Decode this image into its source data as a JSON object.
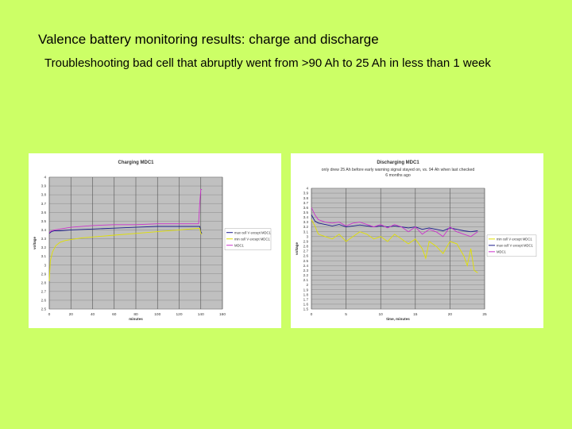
{
  "slide": {
    "title": "Valence battery monitoring results: charge and discharge",
    "subtitle": "Troubleshooting bad cell that abruptly went from >90 Ah to 25 Ah in less than 1 week"
  },
  "colors": {
    "background": "#ccff66",
    "plot_area": "#c0c0c0",
    "max_series": "#1a1a8c",
    "min_series": "#e0e000",
    "mdc1_series": "#cc33cc"
  },
  "chart_data": [
    {
      "type": "line",
      "title": "Charging MDC1",
      "xlabel": "minutes",
      "ylabel": "voltage",
      "xlim": [
        0,
        160
      ],
      "ylim": [
        2.5,
        4.0
      ],
      "x_ticks": [
        "0",
        "20",
        "40",
        "60",
        "80",
        "100",
        "120",
        "140",
        "160"
      ],
      "y_ticks": [
        "4",
        "3.9",
        "3.8",
        "3.7",
        "3.6",
        "3.5",
        "3.4",
        "3.3",
        "3.2",
        "3.1",
        "3",
        "2.9",
        "2.8",
        "2.7",
        "2.6",
        "2.5"
      ],
      "grid": true,
      "legend_position": "right",
      "series": [
        {
          "name": "max cell V except MDC1",
          "x": [
            0,
            2,
            5,
            10,
            20,
            40,
            60,
            80,
            100,
            120,
            139,
            140,
            141
          ],
          "y": [
            3.36,
            3.38,
            3.39,
            3.39,
            3.4,
            3.41,
            3.42,
            3.43,
            3.44,
            3.44,
            3.44,
            3.38,
            3.36
          ]
        },
        {
          "name": "min cell V except MDC1",
          "x": [
            0,
            1,
            3,
            6,
            10,
            15,
            20,
            30,
            40,
            60,
            80,
            100,
            120,
            139,
            140,
            141
          ],
          "y": [
            2.82,
            3.05,
            3.15,
            3.22,
            3.26,
            3.28,
            3.29,
            3.31,
            3.32,
            3.34,
            3.36,
            3.38,
            3.4,
            3.42,
            3.36,
            3.35
          ]
        },
        {
          "name": "MDC1",
          "x": [
            0,
            2,
            5,
            10,
            20,
            40,
            60,
            80,
            100,
            110,
            120,
            138,
            139,
            140,
            141
          ],
          "y": [
            3.37,
            3.39,
            3.4,
            3.41,
            3.43,
            3.45,
            3.46,
            3.46,
            3.47,
            3.47,
            3.47,
            3.47,
            3.7,
            3.86,
            3.86
          ]
        }
      ]
    },
    {
      "type": "line",
      "title": "Discharging MDC1",
      "subtitle": "only drew 25 Ah before early warning signal stayed on, vs. 94 Ah when last checked 6 months ago",
      "xlabel": "time, minutes",
      "ylabel": "voltage",
      "xlim": [
        0,
        25
      ],
      "ylim": [
        1.5,
        4.0
      ],
      "x_ticks": [
        "0",
        "5",
        "10",
        "15",
        "20",
        "25"
      ],
      "y_ticks": [
        "4",
        "3.9",
        "3.8",
        "3.7",
        "3.6",
        "3.5",
        "3.4",
        "3.3",
        "3.2",
        "3.1",
        "3",
        "2.9",
        "2.8",
        "2.7",
        "2.6",
        "2.5",
        "2.4",
        "2.3",
        "2.2",
        "2.1",
        "2",
        "1.9",
        "1.8",
        "1.7",
        "1.6",
        "1.5"
      ],
      "grid": true,
      "legend_position": "right",
      "series": [
        {
          "name": "min cell V except MDC1",
          "x": [
            0,
            0.5,
            1,
            2,
            3,
            4,
            5,
            6,
            7,
            8,
            9,
            10,
            11,
            12,
            13,
            14,
            15,
            16,
            16.5,
            17,
            18,
            19,
            20,
            21,
            22,
            22.5,
            23,
            23.5,
            24
          ],
          "y": [
            3.35,
            3.22,
            3.05,
            3.0,
            2.95,
            3.05,
            2.9,
            3.0,
            3.1,
            3.05,
            2.95,
            3.0,
            2.9,
            3.05,
            2.95,
            2.85,
            2.95,
            2.75,
            2.55,
            2.9,
            2.8,
            2.65,
            2.9,
            2.85,
            2.6,
            2.4,
            2.75,
            2.3,
            2.25
          ]
        },
        {
          "name": "max cell V except MDC1",
          "x": [
            0,
            0.5,
            1,
            2,
            3,
            4,
            5,
            6,
            7,
            8,
            9,
            10,
            11,
            12,
            13,
            14,
            15,
            16,
            17,
            18,
            19,
            20,
            21,
            22,
            23,
            24
          ],
          "y": [
            3.45,
            3.32,
            3.28,
            3.25,
            3.22,
            3.25,
            3.2,
            3.22,
            3.24,
            3.22,
            3.2,
            3.22,
            3.2,
            3.22,
            3.2,
            3.18,
            3.2,
            3.15,
            3.18,
            3.15,
            3.12,
            3.18,
            3.15,
            3.12,
            3.1,
            3.12
          ]
        },
        {
          "name": "MDC1",
          "x": [
            0,
            0.5,
            1,
            2,
            3,
            4,
            5,
            6,
            7,
            8,
            9,
            10,
            11,
            12,
            13,
            14,
            15,
            16,
            17,
            18,
            19,
            20,
            21,
            22,
            23,
            24
          ],
          "y": [
            3.6,
            3.45,
            3.35,
            3.3,
            3.28,
            3.3,
            3.22,
            3.28,
            3.3,
            3.25,
            3.2,
            3.25,
            3.18,
            3.25,
            3.2,
            3.1,
            3.2,
            3.05,
            3.15,
            3.1,
            3.0,
            3.2,
            3.1,
            3.05,
            3.0,
            3.1
          ]
        }
      ]
    }
  ]
}
